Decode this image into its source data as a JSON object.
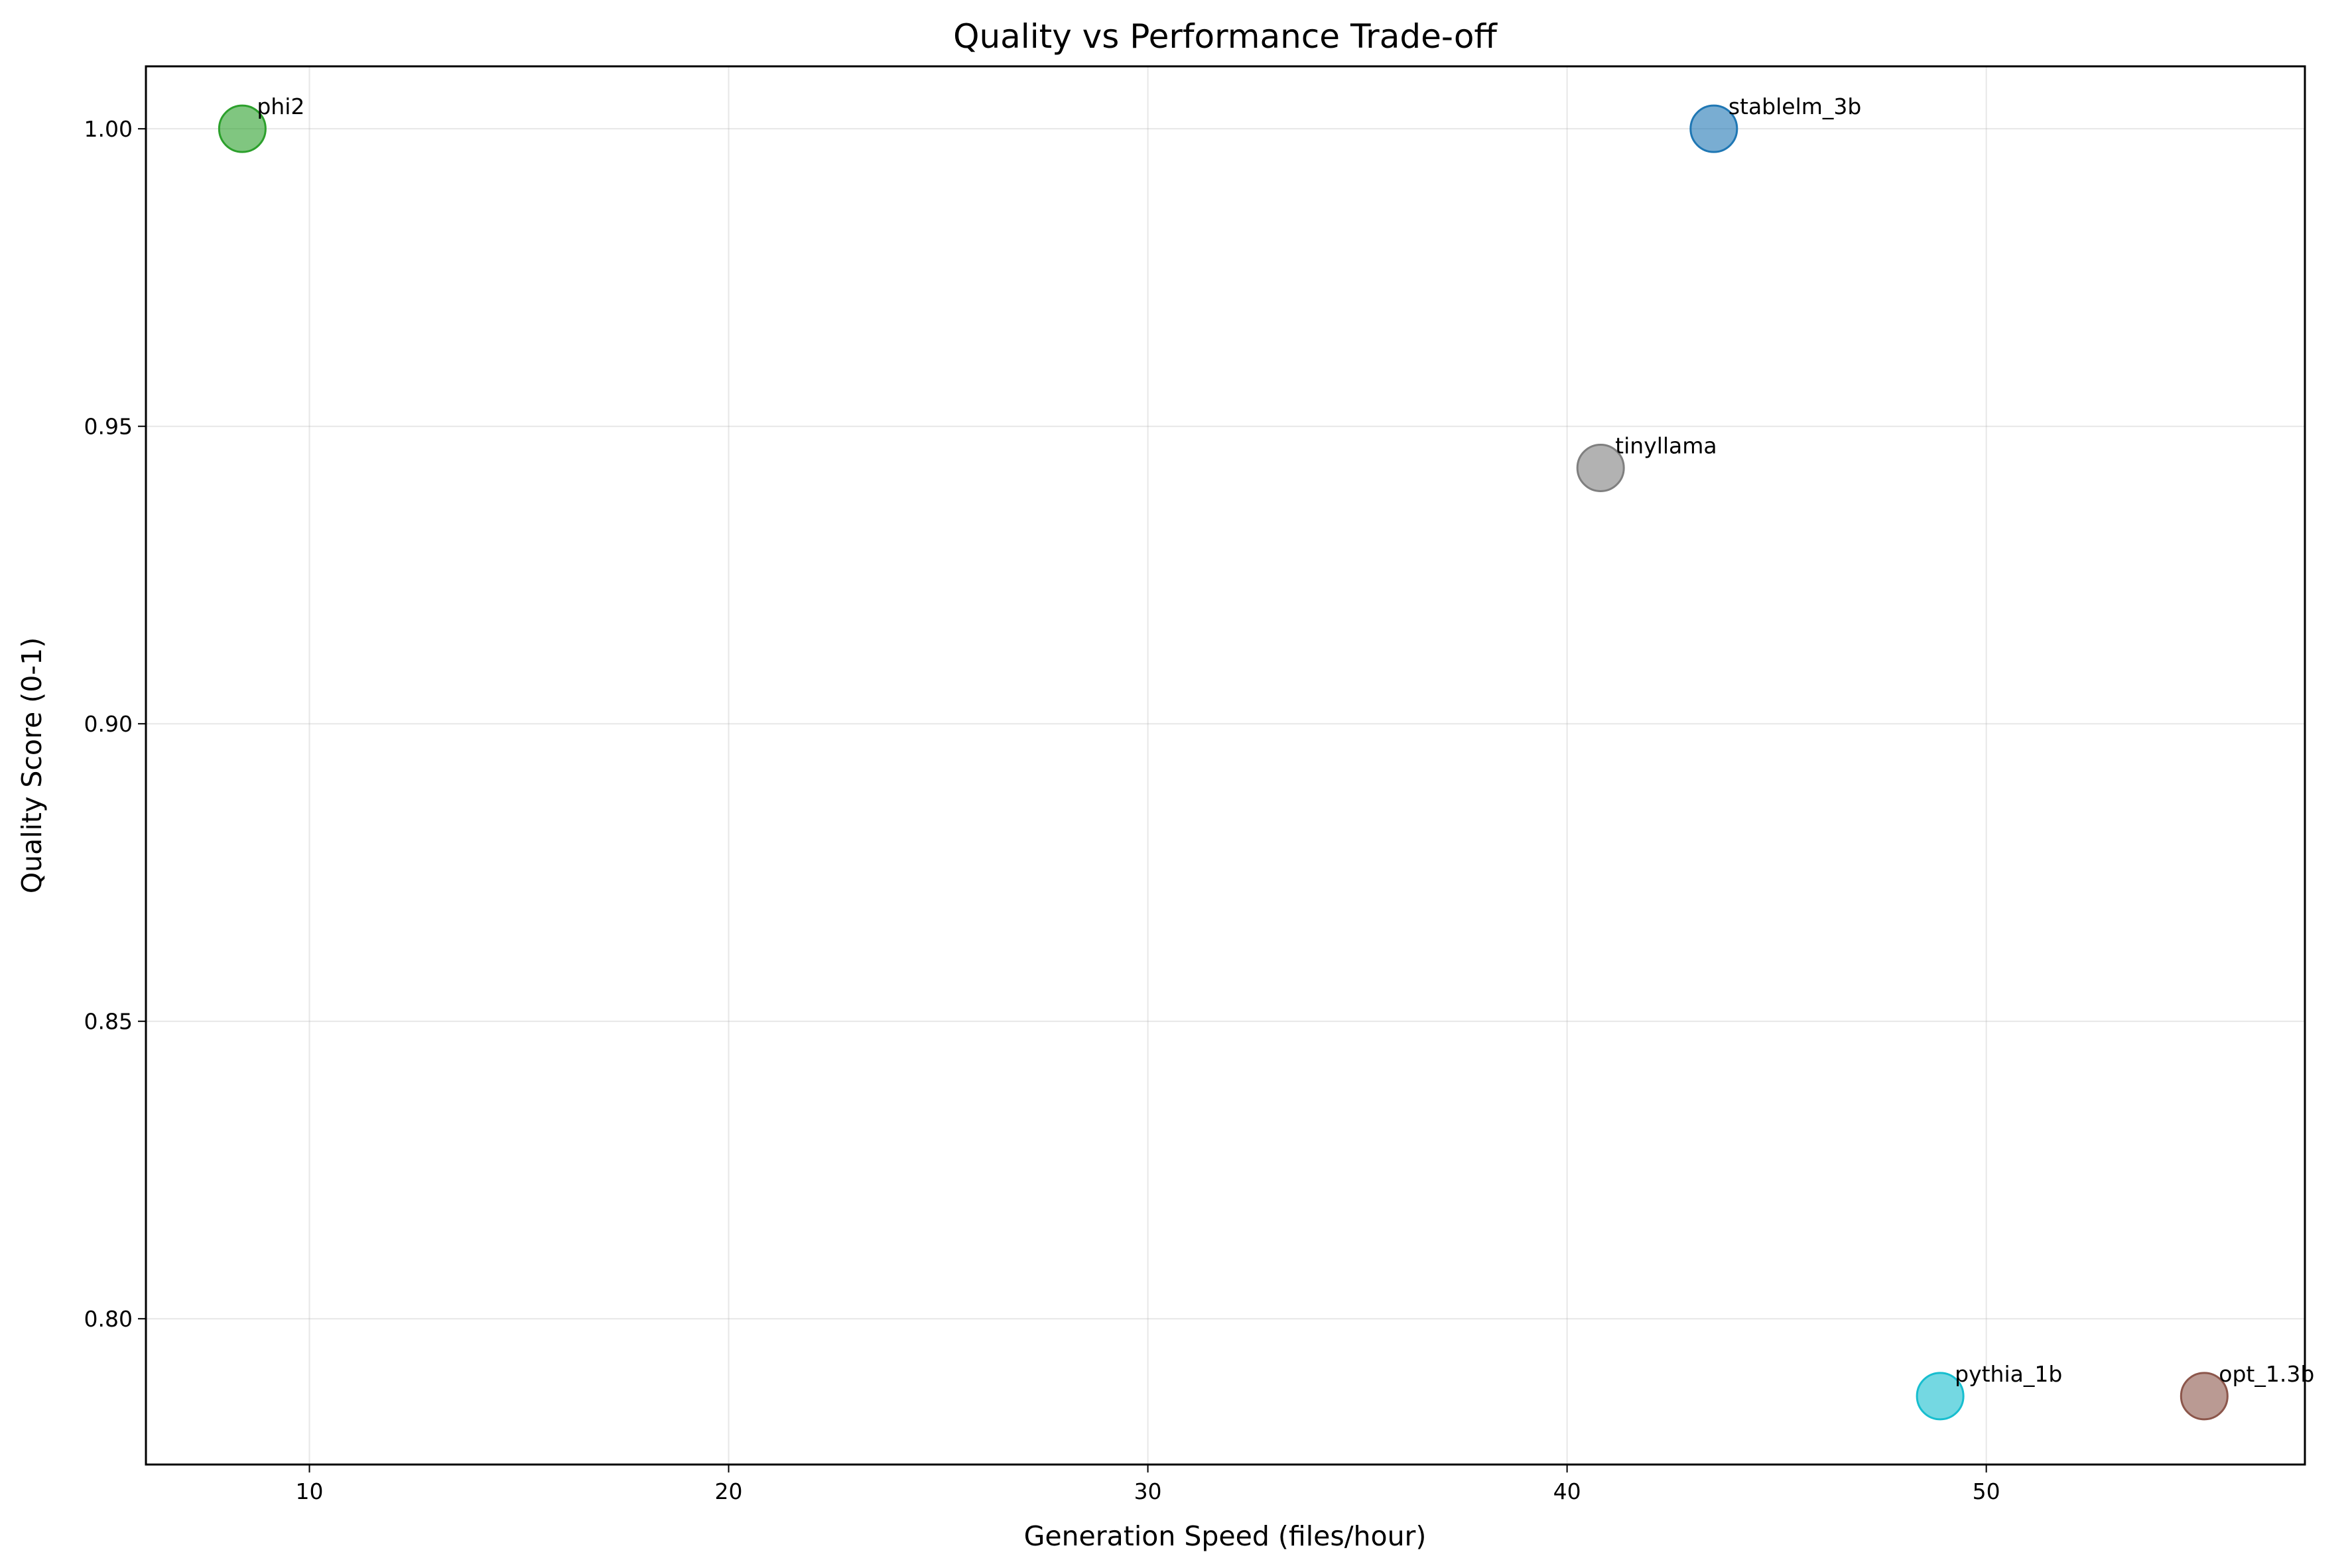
{
  "chart_data": {
    "type": "scatter",
    "title": "Quality vs Performance Trade-off",
    "xlabel": "Generation Speed (files/hour)",
    "ylabel": "Quality Score (0-1)",
    "xlim": [
      6.1,
      57.6
    ],
    "ylim": [
      0.7755,
      1.0105
    ],
    "xticks": [
      10,
      20,
      30,
      40,
      50
    ],
    "xtick_labels": [
      "10",
      "20",
      "30",
      "40",
      "50"
    ],
    "yticks": [
      0.8,
      0.85,
      0.9,
      0.95,
      1.0
    ],
    "ytick_labels": [
      "0.80",
      "0.85",
      "0.90",
      "0.95",
      "1.00"
    ],
    "grid": true,
    "points": [
      {
        "name": "phi2",
        "x": 8.4,
        "y": 1.0,
        "color": "#2ca02c"
      },
      {
        "name": "stablelm_3b",
        "x": 43.5,
        "y": 1.0,
        "color": "#1f77b4"
      },
      {
        "name": "tinyllama",
        "x": 40.8,
        "y": 0.943,
        "color": "#7f7f7f"
      },
      {
        "name": "pythia_1b",
        "x": 48.9,
        "y": 0.787,
        "color": "#17becf"
      },
      {
        "name": "opt_1.3b",
        "x": 55.2,
        "y": 0.787,
        "color": "#8c564b"
      }
    ]
  }
}
